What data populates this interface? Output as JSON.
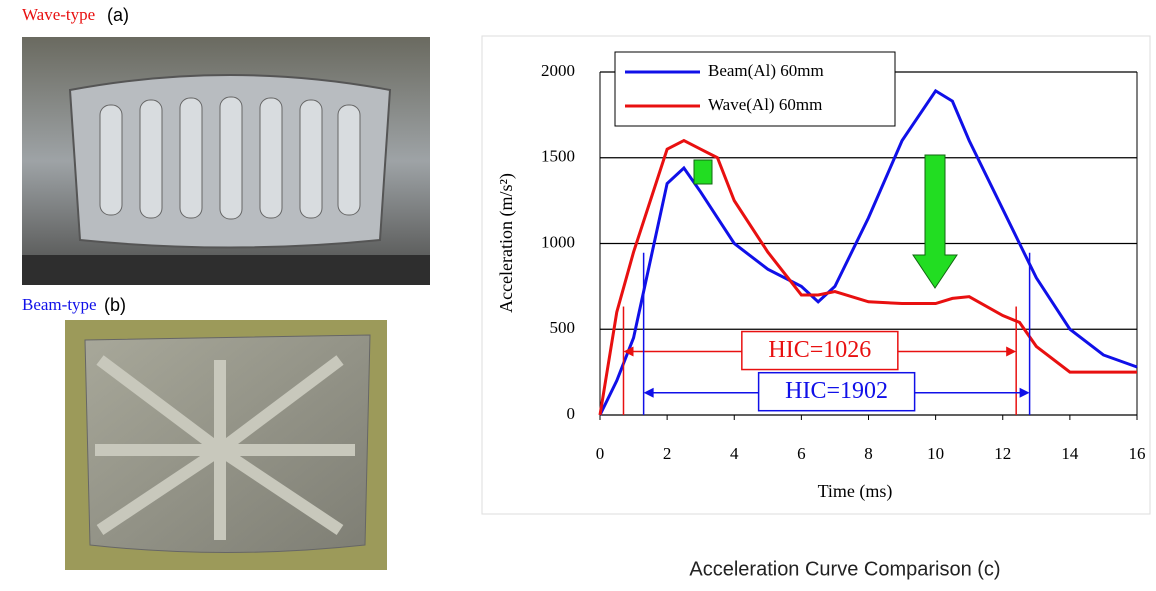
{
  "panels": {
    "a": {
      "name": "Wave-type",
      "label": "(a)"
    },
    "b": {
      "name": "Beam-type",
      "label": "(b)"
    }
  },
  "chart_data": {
    "type": "line",
    "caption": "Acceleration Curve Comparison (c)",
    "x_label": "Time (ms)",
    "y_label": "Acceleration (m/s²)",
    "x": [
      0,
      0.5,
      1,
      1.5,
      2,
      2.5,
      3,
      3.5,
      4,
      5,
      6,
      6.5,
      7,
      8,
      9,
      10,
      10.5,
      11,
      12,
      12.5,
      13,
      14,
      15,
      16
    ],
    "series": [
      {
        "name": "Beam(Al) 60mm",
        "color": "#1010e8",
        "values": [
          0,
          200,
          450,
          900,
          1350,
          1440,
          1300,
          1150,
          1000,
          850,
          750,
          660,
          750,
          1150,
          1600,
          1890,
          1830,
          1600,
          1200,
          1000,
          800,
          500,
          350,
          280
        ]
      },
      {
        "name": "Wave(Al) 60mm",
        "color": "#e81010",
        "values": [
          0,
          600,
          950,
          1250,
          1550,
          1600,
          1550,
          1500,
          1250,
          950,
          700,
          700,
          720,
          660,
          650,
          650,
          680,
          690,
          580,
          540,
          400,
          250,
          250,
          250
        ]
      }
    ],
    "xlim": [
      0,
      16
    ],
    "xticks": [
      0,
      2,
      4,
      6,
      8,
      10,
      12,
      14,
      16
    ],
    "ylim": [
      0,
      2000
    ],
    "yticks": [
      0,
      500,
      1000,
      1500,
      2000
    ],
    "grid": true,
    "annotations": [
      {
        "text": "HIC=1026",
        "color": "#e81010",
        "x": [
          0.7,
          12.4
        ],
        "y": 370
      },
      {
        "text": "HIC=1902",
        "color": "#1010e8",
        "x": [
          1.3,
          12.8
        ],
        "y": 130
      }
    ]
  }
}
